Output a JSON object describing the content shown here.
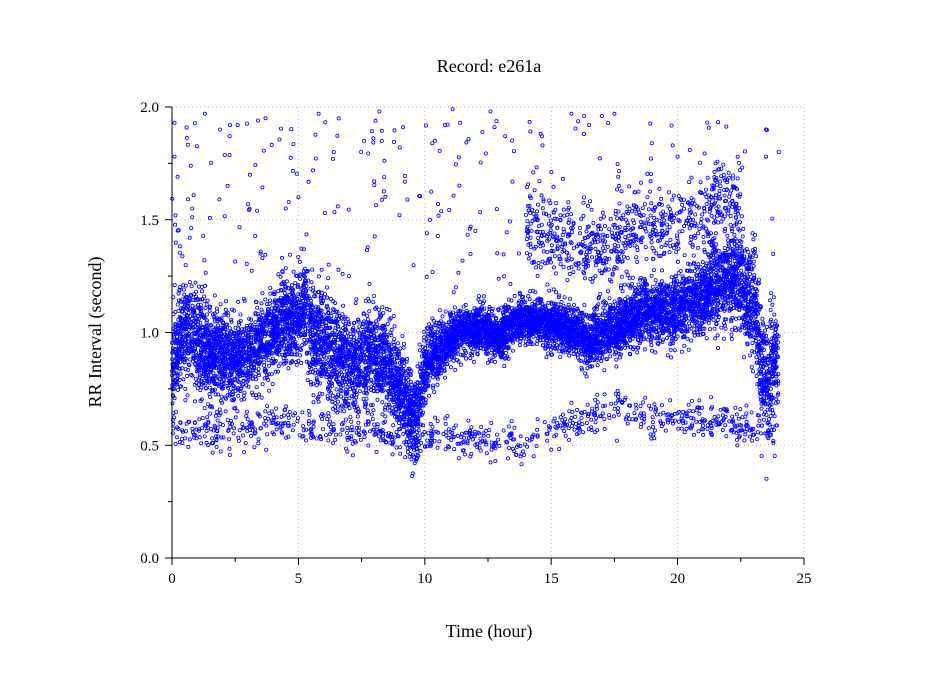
{
  "chart_data": {
    "type": "scatter",
    "title": "Record:  e261a",
    "xlabel": "Time (hour)",
    "ylabel": "RR Interval (second)",
    "xlim": [
      0,
      25
    ],
    "ylim": [
      0,
      2.0
    ],
    "x_ticks": [
      0,
      5,
      10,
      15,
      20,
      25
    ],
    "x_tick_labels": [
      "0",
      "5",
      "10",
      "15",
      "20",
      "25"
    ],
    "x_minor_ticks": [
      2.5,
      7.5,
      12.5,
      17.5,
      22.5
    ],
    "y_ticks": [
      0,
      0.5,
      1.0,
      1.5,
      2.0
    ],
    "y_tick_labels": [
      "0.0",
      "0.5",
      "1.0",
      "1.5",
      "2.0"
    ],
    "y_minor_ticks": [
      0.25,
      0.75,
      1.25,
      1.75
    ],
    "grid": true,
    "legend": "none",
    "marker_color": "#0000ff",
    "series": [
      {
        "trend": [
          [
            0.0,
            0.85
          ],
          [
            0.3,
            0.95
          ],
          [
            0.6,
            1.02
          ],
          [
            1.0,
            0.95
          ],
          [
            1.5,
            0.92
          ],
          [
            2.0,
            0.9
          ],
          [
            2.5,
            0.88
          ],
          [
            3.0,
            0.9
          ],
          [
            3.5,
            0.95
          ],
          [
            4.0,
            1.0
          ],
          [
            4.5,
            1.05
          ],
          [
            5.0,
            1.08
          ],
          [
            5.3,
            1.1
          ],
          [
            5.5,
            1.0
          ],
          [
            6.0,
            0.95
          ],
          [
            6.5,
            0.9
          ],
          [
            7.0,
            0.85
          ],
          [
            7.5,
            0.88
          ],
          [
            8.0,
            0.9
          ],
          [
            8.5,
            0.85
          ],
          [
            9.0,
            0.75
          ],
          [
            9.5,
            0.65
          ],
          [
            9.7,
            0.62
          ],
          [
            10.0,
            0.85
          ],
          [
            10.5,
            0.92
          ],
          [
            11.0,
            0.97
          ],
          [
            11.5,
            1.0
          ],
          [
            12.0,
            1.02
          ],
          [
            12.5,
            1.0
          ],
          [
            13.0,
            0.98
          ],
          [
            13.5,
            1.05
          ],
          [
            14.0,
            1.05
          ],
          [
            14.5,
            1.05
          ],
          [
            15.0,
            1.04
          ],
          [
            15.5,
            1.02
          ],
          [
            16.0,
            1.0
          ],
          [
            16.5,
            0.95
          ],
          [
            17.0,
            1.0
          ],
          [
            17.5,
            1.02
          ],
          [
            18.0,
            1.05
          ],
          [
            18.5,
            1.08
          ],
          [
            19.0,
            1.1
          ],
          [
            19.5,
            1.1
          ],
          [
            20.0,
            1.1
          ],
          [
            20.5,
            1.12
          ],
          [
            21.0,
            1.15
          ],
          [
            21.5,
            1.2
          ],
          [
            22.0,
            1.25
          ],
          [
            22.5,
            1.22
          ],
          [
            23.0,
            1.15
          ],
          [
            23.3,
            0.85
          ],
          [
            23.6,
            0.8
          ],
          [
            24.0,
            0.9
          ]
        ],
        "spread": [
          [
            0.0,
            0.12
          ],
          [
            2.0,
            0.1
          ],
          [
            4.0,
            0.08
          ],
          [
            5.5,
            0.12
          ],
          [
            7.0,
            0.12
          ],
          [
            9.0,
            0.1
          ],
          [
            10.0,
            0.08
          ],
          [
            11.5,
            0.05
          ],
          [
            13.0,
            0.05
          ],
          [
            15.0,
            0.05
          ],
          [
            17.0,
            0.06
          ],
          [
            19.0,
            0.07
          ],
          [
            21.0,
            0.08
          ],
          [
            23.0,
            0.12
          ],
          [
            24.0,
            0.12
          ]
        ],
        "lower_band": [
          [
            0.0,
            0.57
          ],
          [
            2.0,
            0.55
          ],
          [
            4.0,
            0.6
          ],
          [
            6.0,
            0.58
          ],
          [
            8.0,
            0.55
          ],
          [
            9.5,
            0.5
          ],
          [
            10.5,
            0.55
          ],
          [
            12.0,
            0.52
          ],
          [
            14.0,
            0.52
          ],
          [
            15.0,
            0.58
          ],
          [
            16.5,
            0.62
          ],
          [
            17.5,
            0.68
          ],
          [
            19.0,
            0.62
          ],
          [
            21.0,
            0.62
          ],
          [
            23.0,
            0.57
          ],
          [
            24.0,
            0.55
          ]
        ],
        "upper_cluster": [
          [
            14.0,
            1.45
          ],
          [
            15.0,
            1.45
          ],
          [
            16.0,
            1.4
          ],
          [
            17.0,
            1.35
          ],
          [
            18.0,
            1.45
          ],
          [
            19.0,
            1.5
          ],
          [
            20.0,
            1.45
          ],
          [
            22.0,
            1.6
          ]
        ],
        "outliers": [
          [
            0.1,
            1.93
          ],
          [
            0.1,
            1.78
          ],
          [
            1.3,
            1.97
          ],
          [
            1.9,
            1.9
          ],
          [
            2.3,
            1.92
          ],
          [
            2.6,
            1.92
          ],
          [
            3.4,
            1.94
          ],
          [
            3.7,
            1.95
          ],
          [
            5.8,
            1.97
          ],
          [
            6.4,
            1.8
          ],
          [
            7.6,
            1.85
          ],
          [
            8.2,
            1.98
          ],
          [
            10.4,
            1.85
          ],
          [
            10.8,
            1.92
          ],
          [
            11.1,
            1.99
          ],
          [
            11.4,
            1.93
          ],
          [
            12.6,
            1.98
          ],
          [
            15.8,
            1.97
          ],
          [
            16.3,
            1.96
          ],
          [
            16.5,
            1.92
          ],
          [
            17.0,
            1.96
          ],
          [
            17.5,
            1.97
          ],
          [
            20.0,
            1.78
          ],
          [
            21.5,
            1.75
          ],
          [
            23.5,
            1.78
          ],
          [
            24.0,
            1.8
          ],
          [
            0.8,
            1.55
          ],
          [
            2.2,
            1.65
          ],
          [
            4.5,
            1.55
          ],
          [
            5.0,
            1.6
          ],
          [
            8.0,
            1.67
          ],
          [
            9.0,
            1.52
          ],
          [
            10.2,
            1.5
          ],
          [
            12.0,
            1.45
          ],
          [
            3.5,
            1.35
          ],
          [
            6.2,
            1.3
          ],
          [
            7.0,
            1.25
          ],
          [
            9.6,
            0.42
          ],
          [
            9.4,
            0.45
          ],
          [
            4.0,
            0.6
          ],
          [
            11.8,
            0.45
          ],
          [
            13.7,
            0.5
          ],
          [
            15.0,
            0.48
          ],
          [
            17.6,
            0.52
          ],
          [
            20.5,
            0.58
          ]
        ],
        "trend_n": 9000,
        "lower_n": 800,
        "cluster_n": 700,
        "scatter_n": 260,
        "seed": 20611
      }
    ]
  }
}
